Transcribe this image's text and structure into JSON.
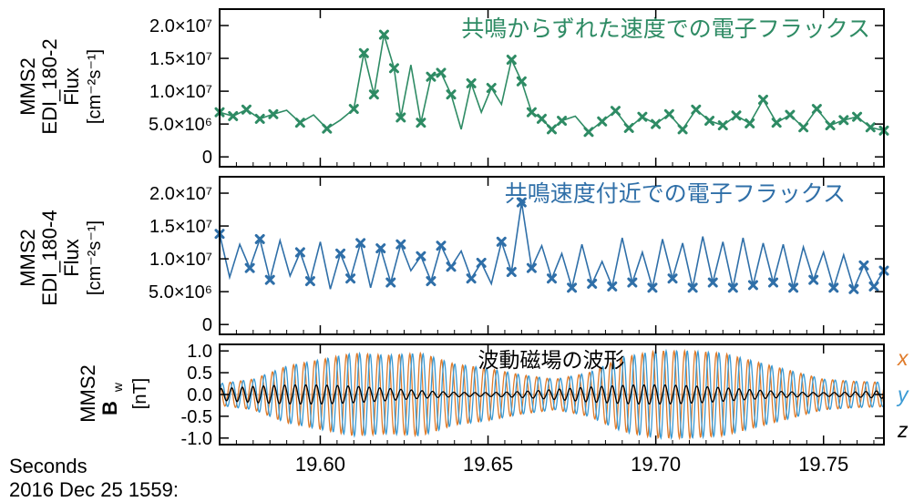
{
  "figure": {
    "time_label": "Seconds",
    "date_label": "2016 Dec 25 1559:",
    "x_ticks": [
      "19.60",
      "19.65",
      "19.70",
      "19.75"
    ]
  },
  "chart_data": [
    {
      "type": "line",
      "id": "flux1",
      "ylabel_lines": [
        "MMS2",
        "EDI_180-2",
        "Flux",
        "[cm⁻²s⁻¹]"
      ],
      "annotation": "共鳴からずれた速度での電子フラックス",
      "color": "#2e8b64",
      "yticks": [
        "0",
        "5.0×10⁶",
        "1.0×10⁷",
        "1.5×10⁷",
        "2.0×10⁷"
      ],
      "ytick_values": [
        0,
        5000000,
        10000000,
        15000000,
        20000000
      ],
      "ylim": [
        -1500000,
        22500000
      ],
      "xlim": [
        19.57,
        19.768
      ],
      "x": [
        19.57,
        19.574,
        19.578,
        19.582,
        19.586,
        19.59,
        19.594,
        19.598,
        19.602,
        19.606,
        19.61,
        19.613,
        19.616,
        19.619,
        19.622,
        19.624,
        19.627,
        19.63,
        19.633,
        19.636,
        19.639,
        19.642,
        19.645,
        19.648,
        19.651,
        19.654,
        19.657,
        19.66,
        19.663,
        19.666,
        19.669,
        19.672,
        19.676,
        19.68,
        19.684,
        19.688,
        19.692,
        19.696,
        19.7,
        19.704,
        19.708,
        19.712,
        19.716,
        19.72,
        19.724,
        19.728,
        19.732,
        19.736,
        19.74,
        19.744,
        19.748,
        19.752,
        19.756,
        19.76,
        19.764,
        19.768
      ],
      "values": [
        6800000,
        6200000,
        7200000,
        5800000,
        6500000,
        7100000,
        5200000,
        6400000,
        4300000,
        5600000,
        7300000,
        15800000,
        9500000,
        18600000,
        13500000,
        6000000,
        14000000,
        5200000,
        12200000,
        12800000,
        9500000,
        4200000,
        11200000,
        6800000,
        10500000,
        8000000,
        14800000,
        11500000,
        6800000,
        5800000,
        4200000,
        5500000,
        6200000,
        3800000,
        5400000,
        7000000,
        4400000,
        6100000,
        5000000,
        6500000,
        4200000,
        7200000,
        5500000,
        4800000,
        6300000,
        5100000,
        8700000,
        5200000,
        6400000,
        4500000,
        7300000,
        4800000,
        5600000,
        6100000,
        4500000,
        4000000
      ],
      "marker_indices": [
        0,
        1,
        2,
        3,
        4,
        6,
        8,
        10,
        11,
        12,
        13,
        14,
        15,
        17,
        18,
        19,
        20,
        22,
        24,
        26,
        27,
        28,
        29,
        30,
        31,
        33,
        34,
        35,
        36,
        37,
        38,
        39,
        40,
        41,
        42,
        43,
        44,
        45,
        46,
        47,
        48,
        49,
        50,
        51,
        52,
        53,
        54,
        55
      ]
    },
    {
      "type": "line",
      "id": "flux2",
      "ylabel_lines": [
        "MMS2",
        "EDI_180-4",
        "Flux",
        "[cm⁻²s⁻¹]"
      ],
      "annotation": "共鳴速度付近での電子フラックス",
      "color": "#2f6fa8",
      "yticks": [
        "0",
        "5.0×10⁶",
        "1.0×10⁷",
        "1.5×10⁷",
        "2.0×10⁷"
      ],
      "ytick_values": [
        0,
        5000000,
        10000000,
        15000000,
        20000000
      ],
      "ylim": [
        -1500000,
        22500000
      ],
      "xlim": [
        19.57,
        19.768
      ],
      "x": [
        19.57,
        19.573,
        19.576,
        19.579,
        19.582,
        19.585,
        19.588,
        19.591,
        19.594,
        19.597,
        19.6,
        19.603,
        19.606,
        19.609,
        19.612,
        19.615,
        19.618,
        19.621,
        19.624,
        19.627,
        19.63,
        19.633,
        19.636,
        19.639,
        19.642,
        19.645,
        19.648,
        19.651,
        19.654,
        19.657,
        19.66,
        19.663,
        19.666,
        19.669,
        19.672,
        19.675,
        19.678,
        19.681,
        19.684,
        19.687,
        19.69,
        19.693,
        19.696,
        19.699,
        19.702,
        19.705,
        19.708,
        19.711,
        19.714,
        19.717,
        19.72,
        19.723,
        19.726,
        19.729,
        19.732,
        19.735,
        19.738,
        19.741,
        19.744,
        19.747,
        19.75,
        19.753,
        19.756,
        19.759,
        19.762,
        19.765,
        19.768
      ],
      "values": [
        13800000,
        7200000,
        12200000,
        8600000,
        13000000,
        6800000,
        12800000,
        7400000,
        11000000,
        6600000,
        12600000,
        5400000,
        10800000,
        7000000,
        12400000,
        5600000,
        11600000,
        6400000,
        12200000,
        8200000,
        10400000,
        6600000,
        12000000,
        8800000,
        11200000,
        7000000,
        9400000,
        6200000,
        12600000,
        8000000,
        18600000,
        8600000,
        12000000,
        7000000,
        10800000,
        5600000,
        12200000,
        6200000,
        9600000,
        5800000,
        13200000,
        6400000,
        11000000,
        5600000,
        13000000,
        7000000,
        12400000,
        5600000,
        13400000,
        6400000,
        12600000,
        5600000,
        13200000,
        6000000,
        12400000,
        6400000,
        12200000,
        5600000,
        11800000,
        6800000,
        11000000,
        5600000,
        10600000,
        5400000,
        9000000,
        5800000,
        8200000
      ],
      "marker_indices": [
        0,
        3,
        4,
        5,
        8,
        9,
        12,
        13,
        14,
        16,
        17,
        18,
        20,
        21,
        22,
        23,
        25,
        26,
        28,
        29,
        30,
        31,
        33,
        35,
        37,
        39,
        41,
        43,
        45,
        47,
        49,
        51,
        53,
        55,
        57,
        59,
        61,
        63,
        64,
        65,
        66
      ]
    },
    {
      "type": "line",
      "id": "bw",
      "ylabel_lines": [
        "MMS2",
        "B",
        "w",
        "[nT]"
      ],
      "annotation": "波動磁場の波形",
      "yticks": [
        "-1.0",
        "-0.5",
        "0.0",
        "0.5",
        "1.0"
      ],
      "ytick_values": [
        -1.0,
        -0.5,
        0.0,
        0.5,
        1.0
      ],
      "ylim": [
        -1.15,
        1.15
      ],
      "xlim": [
        19.57,
        19.768
      ],
      "period": 0.00315,
      "series": [
        {
          "name": "x",
          "color": "#e07b2a"
        },
        {
          "name": "y",
          "color": "#3a9ad4"
        },
        {
          "name": "z",
          "color": "#000000"
        }
      ],
      "envelope": {
        "t": [
          19.57,
          19.58,
          19.59,
          19.6,
          19.61,
          19.62,
          19.63,
          19.64,
          19.65,
          19.66,
          19.67,
          19.68,
          19.69,
          19.7,
          19.71,
          19.72,
          19.73,
          19.74,
          19.75,
          19.76,
          19.768
        ],
        "amp": [
          0.25,
          0.35,
          0.65,
          0.8,
          0.95,
          0.9,
          0.95,
          0.7,
          0.6,
          0.45,
          0.35,
          0.5,
          0.85,
          1.0,
          1.0,
          0.95,
          0.75,
          0.55,
          0.35,
          0.3,
          0.28
        ]
      }
    }
  ]
}
